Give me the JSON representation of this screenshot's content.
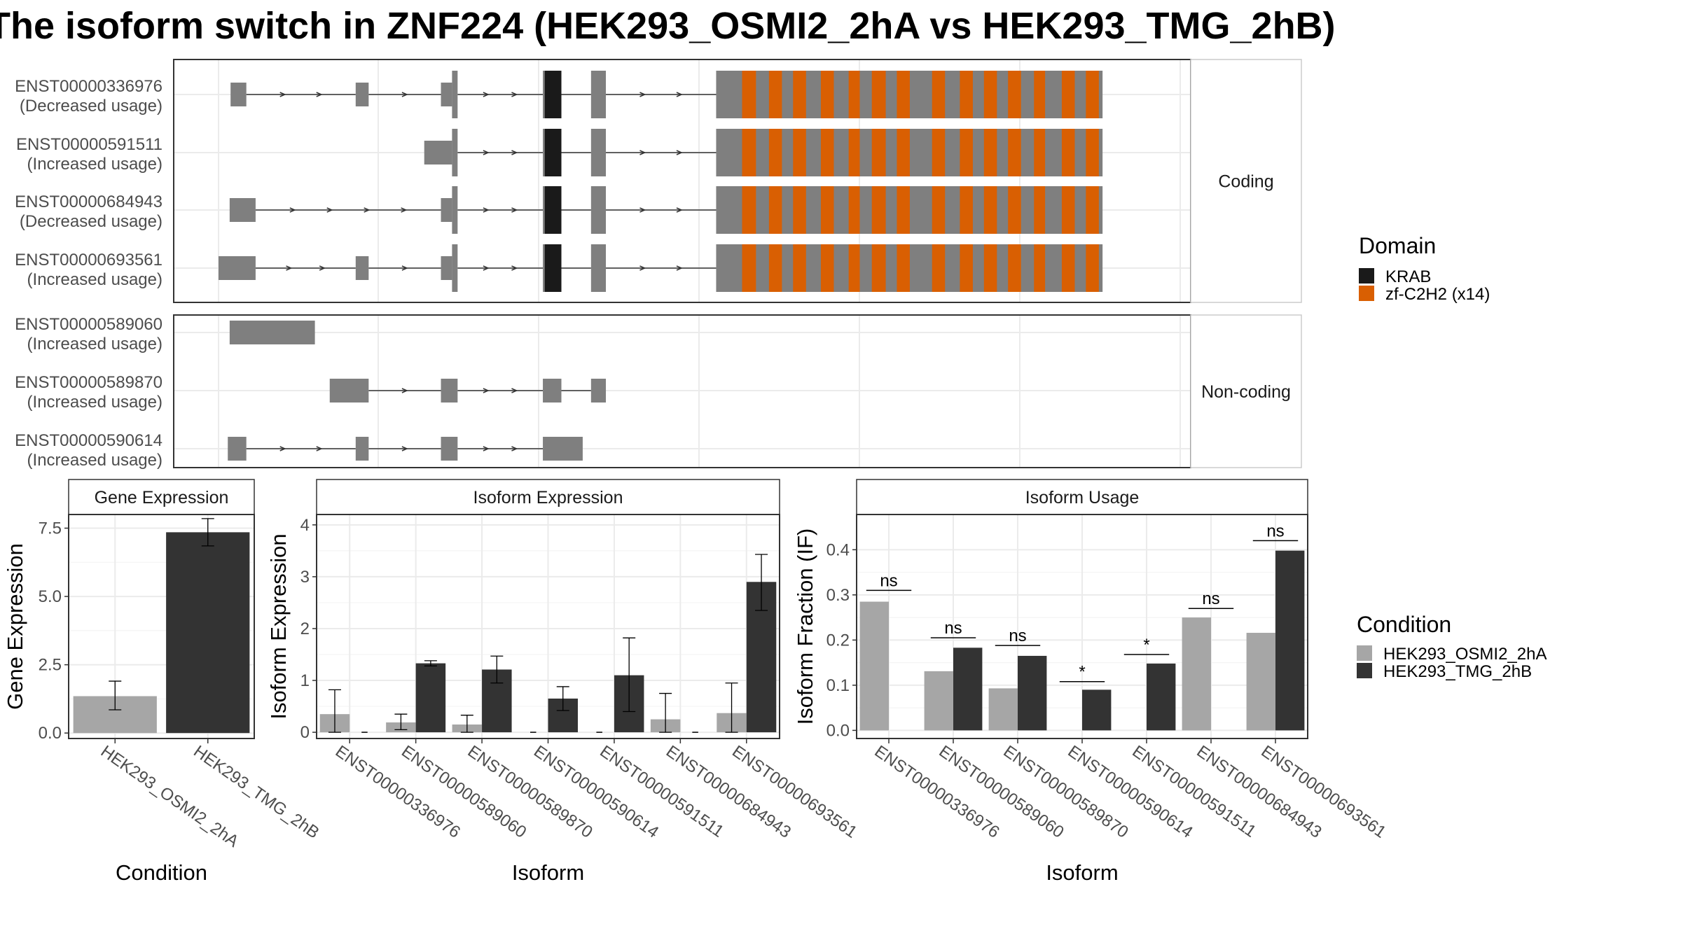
{
  "title": "The isoform switch in ZNF224 (HEK293_OSMI2_2hA vs HEK293_TMG_2hB)",
  "colors": {
    "exon": "#7f7f7f",
    "krab": "#1a1a1a",
    "znf": "#d95f02",
    "cond_a": "#a6a6a6",
    "cond_b": "#333333",
    "grid": "#ebebeb",
    "strip_fill": "#ffffff"
  },
  "legend_domain": {
    "title": "Domain",
    "items": [
      {
        "label": "KRAB",
        "color": "#1a1a1a"
      },
      {
        "label": "zf-C2H2 (x14)",
        "color": "#d95f02"
      }
    ]
  },
  "legend_condition": {
    "title": "Condition",
    "items": [
      {
        "label": "HEK293_OSMI2_2hA",
        "color": "#a6a6a6"
      },
      {
        "label": "HEK293_TMG_2hB",
        "color": "#333333"
      }
    ]
  },
  "structure": {
    "coding_strip": "Coding",
    "noncoding_strip": "Non-coding",
    "coding": [
      {
        "id": "ENST00000336976",
        "note": "(Decreased usage)",
        "exons": [
          [
            0.013,
            0.03,
            "s"
          ],
          [
            0.148,
            0.162,
            "s"
          ],
          [
            0.24,
            0.252,
            "s"
          ],
          [
            0.252,
            0.258,
            "t"
          ],
          [
            0.35,
            0.352,
            "t"
          ],
          [
            0.352,
            0.37,
            "t"
          ],
          [
            0.402,
            0.418,
            "t"
          ],
          [
            0.537,
            0.954,
            "t"
          ]
        ]
      },
      {
        "id": "ENST00000591511",
        "note": "(Increased usage)",
        "exons": [
          [
            0.222,
            0.252,
            "s"
          ],
          [
            0.252,
            0.258,
            "t"
          ],
          [
            0.35,
            0.352,
            "t"
          ],
          [
            0.352,
            0.37,
            "t"
          ],
          [
            0.402,
            0.418,
            "t"
          ],
          [
            0.537,
            0.954,
            "t"
          ]
        ]
      },
      {
        "id": "ENST00000684943",
        "note": "(Decreased usage)",
        "exons": [
          [
            0.012,
            0.04,
            "s"
          ],
          [
            0.24,
            0.252,
            "s"
          ],
          [
            0.252,
            0.258,
            "t"
          ],
          [
            0.35,
            0.352,
            "t"
          ],
          [
            0.352,
            0.37,
            "t"
          ],
          [
            0.402,
            0.418,
            "t"
          ],
          [
            0.537,
            0.954,
            "t"
          ]
        ]
      },
      {
        "id": "ENST00000693561",
        "note": "(Increased usage)",
        "exons": [
          [
            0.0,
            0.04,
            "s"
          ],
          [
            0.148,
            0.162,
            "s"
          ],
          [
            0.24,
            0.252,
            "s"
          ],
          [
            0.252,
            0.258,
            "t"
          ],
          [
            0.35,
            0.352,
            "t"
          ],
          [
            0.352,
            0.37,
            "t"
          ],
          [
            0.402,
            0.418,
            "t"
          ],
          [
            0.537,
            0.954,
            "t"
          ]
        ]
      }
    ],
    "noncoding": [
      {
        "id": "ENST00000589060",
        "note": "(Increased usage)",
        "exons": [
          [
            0.012,
            0.104,
            "s"
          ]
        ]
      },
      {
        "id": "ENST00000589870",
        "note": "(Increased usage)",
        "exons": [
          [
            0.12,
            0.162,
            "s"
          ],
          [
            0.24,
            0.258,
            "s"
          ],
          [
            0.35,
            0.37,
            "s"
          ],
          [
            0.402,
            0.418,
            "s"
          ]
        ]
      },
      {
        "id": "ENST00000590614",
        "note": "(Increased usage)",
        "exons": [
          [
            0.01,
            0.03,
            "s"
          ],
          [
            0.148,
            0.162,
            "s"
          ],
          [
            0.24,
            0.258,
            "s"
          ],
          [
            0.35,
            0.393,
            "s"
          ]
        ]
      }
    ],
    "domains": {
      "krab": [
        [
          0.352,
          0.37
        ]
      ],
      "znf": [
        [
          0.565,
          0.58
        ],
        [
          0.594,
          0.608
        ],
        [
          0.62,
          0.634
        ],
        [
          0.65,
          0.664
        ],
        [
          0.68,
          0.692
        ],
        [
          0.705,
          0.72
        ],
        [
          0.732,
          0.746
        ],
        [
          0.77,
          0.784
        ],
        [
          0.8,
          0.814
        ],
        [
          0.826,
          0.84
        ],
        [
          0.852,
          0.866
        ],
        [
          0.88,
          0.892
        ],
        [
          0.91,
          0.924
        ],
        [
          0.936,
          0.95
        ]
      ]
    }
  },
  "chart_data": [
    {
      "type": "bar",
      "title": "Gene Expression",
      "xlabel": "Condition",
      "ylabel": "Gene Expression",
      "categories": [
        "HEK293_OSMI2_2hA",
        "HEK293_TMG_2hB"
      ],
      "values": [
        1.35,
        7.35
      ],
      "error_low": [
        0.85,
        6.85
      ],
      "error_high": [
        1.9,
        7.85
      ],
      "ylim": [
        -0.2,
        8.0
      ],
      "yticks": [
        "0.0",
        "2.5",
        "5.0",
        "7.5"
      ],
      "ytick_values": [
        0,
        2.5,
        5,
        7.5
      ],
      "grid": true
    },
    {
      "type": "bar",
      "title": "Isoform Expression",
      "xlabel": "Isoform",
      "ylabel": "Isoform Expression",
      "categories": [
        "ENST00000336976",
        "ENST00000589060",
        "ENST00000589870",
        "ENST00000590614",
        "ENST00000591511",
        "ENST00000684943",
        "ENST00000693561"
      ],
      "series": [
        {
          "name": "HEK293_OSMI2_2hA",
          "values": [
            0.35,
            0.19,
            0.15,
            0.0,
            0.0,
            0.25,
            0.37
          ],
          "error_low": [
            0.0,
            0.05,
            0.0,
            0.0,
            0.0,
            0.0,
            0.0
          ],
          "error_high": [
            0.82,
            0.35,
            0.33,
            0.0,
            0.0,
            0.75,
            0.95
          ]
        },
        {
          "name": "HEK293_TMG_2hB",
          "values": [
            0.0,
            1.33,
            1.21,
            0.65,
            1.1,
            0.0,
            2.9
          ],
          "error_low": [
            0.0,
            1.28,
            0.95,
            0.42,
            0.4,
            0.0,
            2.35
          ],
          "error_high": [
            0.0,
            1.38,
            1.47,
            0.88,
            1.82,
            0.0,
            3.43
          ]
        }
      ],
      "ylim": [
        -0.12,
        4.2
      ],
      "yticks": [
        "0",
        "1",
        "2",
        "3",
        "4"
      ],
      "ytick_values": [
        0,
        1,
        2,
        3,
        4
      ],
      "grid": true
    },
    {
      "type": "bar",
      "title": "Isoform Usage",
      "xlabel": "Isoform",
      "ylabel": "Isoform Fraction (IF)",
      "categories": [
        "ENST00000336976",
        "ENST00000589060",
        "ENST00000589870",
        "ENST00000590614",
        "ENST00000591511",
        "ENST00000684943",
        "ENST00000693561"
      ],
      "series": [
        {
          "name": "HEK293_OSMI2_2hA",
          "values": [
            0.285,
            0.131,
            0.093,
            0.0,
            0.0,
            0.25,
            0.216
          ]
        },
        {
          "name": "HEK293_TMG_2hB",
          "values": [
            0.0,
            0.183,
            0.165,
            0.09,
            0.148,
            0.0,
            0.398
          ]
        }
      ],
      "significance": [
        "ns",
        "ns",
        "ns",
        "*",
        "*",
        "ns",
        "ns"
      ],
      "sig_y": [
        0.31,
        0.205,
        0.188,
        0.108,
        0.168,
        0.27,
        0.42
      ],
      "ylim": [
        -0.018,
        0.478
      ],
      "yticks": [
        "0.0",
        "0.1",
        "0.2",
        "0.3",
        "0.4"
      ],
      "ytick_values": [
        0,
        0.1,
        0.2,
        0.3,
        0.4
      ],
      "grid": true
    }
  ]
}
